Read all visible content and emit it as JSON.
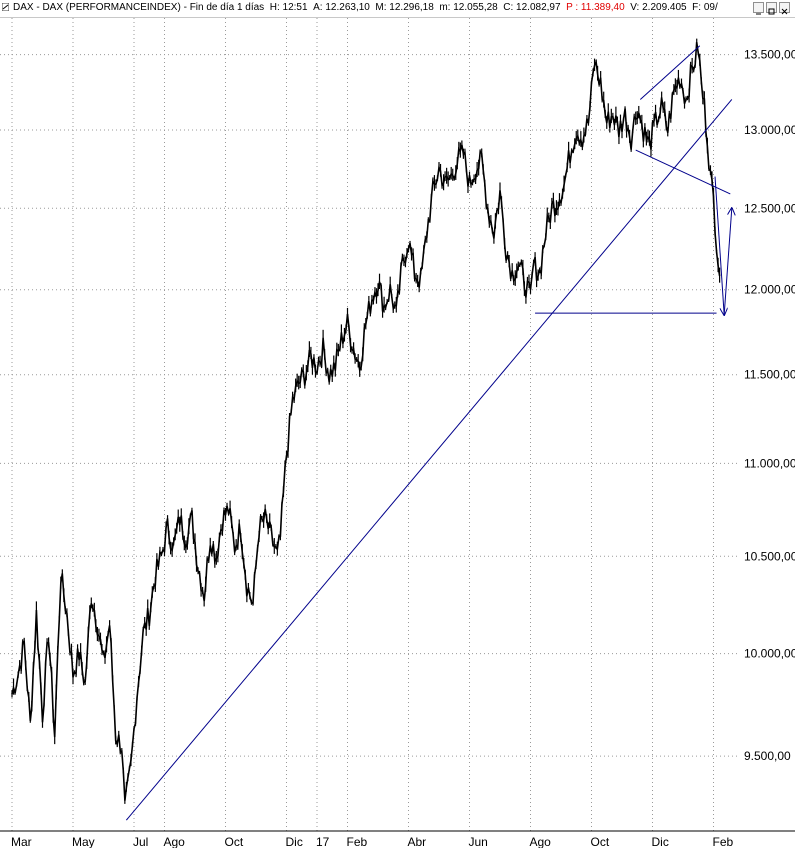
{
  "window": {
    "title_parts": {
      "name": "DAX - DAX (PERFORMANCEINDEX)",
      "period": "Fin de día 1 días",
      "hour": "H: 12:51",
      "open": "A: 12.263,10",
      "high": "M: 12.296,18",
      "low": "m: 12.055,28",
      "close": "C: 12.082,97",
      "p_value": "P : 11.389,40",
      "volume": "V: 2.209.405",
      "date_frag": "F: 09/"
    },
    "buttons": [
      "minimize",
      "maximize",
      "close"
    ]
  },
  "colors": {
    "price": "#000000",
    "trendlines": "#00008b",
    "grid": "#9a9a9a",
    "p_value_text": "#e00000"
  },
  "chart_data": {
    "type": "line",
    "title": "DAX - DAX (PERFORMANCEINDEX)",
    "y_ticks": [
      {
        "value": 9500,
        "label": "9.500,00"
      },
      {
        "value": 10000,
        "label": "10.000,00"
      },
      {
        "value": 10500,
        "label": "10.500,00"
      },
      {
        "value": 11000,
        "label": "11.000,00"
      },
      {
        "value": 11500,
        "label": "11.500,00"
      },
      {
        "value": 12000,
        "label": "12.000,00"
      },
      {
        "value": 12500,
        "label": "12.500,00"
      },
      {
        "value": 13000,
        "label": "13.000,00"
      },
      {
        "value": 13500,
        "label": "13.500,00"
      }
    ],
    "ylim": [
      9150,
      13750
    ],
    "log_scale": true,
    "x_ticks": [
      {
        "t": 0,
        "label": "Mar"
      },
      {
        "t": 2,
        "label": "May"
      },
      {
        "t": 4,
        "label": "Jul"
      },
      {
        "t": 5,
        "label": "Ago"
      },
      {
        "t": 7,
        "label": "Oct"
      },
      {
        "t": 9,
        "label": "Dic"
      },
      {
        "t": 10,
        "label": "17"
      },
      {
        "t": 11,
        "label": "Feb"
      },
      {
        "t": 13,
        "label": "Abr"
      },
      {
        "t": 15,
        "label": "Jun"
      },
      {
        "t": 17,
        "label": "Ago"
      },
      {
        "t": 19,
        "label": "Oct"
      },
      {
        "t": 21,
        "label": "Dic"
      },
      {
        "t": 23,
        "label": "Feb"
      }
    ],
    "grid": true,
    "series": [
      {
        "values": [
          [
            0.0,
            9800
          ],
          [
            0.2,
            9900
          ],
          [
            0.4,
            10050
          ],
          [
            0.6,
            9650
          ],
          [
            0.8,
            10200
          ],
          [
            1.0,
            9700
          ],
          [
            1.2,
            10100
          ],
          [
            1.4,
            9600
          ],
          [
            1.6,
            10400
          ],
          [
            1.8,
            10200
          ],
          [
            2.0,
            9900
          ],
          [
            2.2,
            10000
          ],
          [
            2.4,
            9850
          ],
          [
            2.6,
            10300
          ],
          [
            2.8,
            10150
          ],
          [
            3.0,
            9950
          ],
          [
            3.2,
            10150
          ],
          [
            3.4,
            9600
          ],
          [
            3.6,
            9550
          ],
          [
            3.7,
            9250
          ],
          [
            3.9,
            9450
          ],
          [
            4.1,
            9800
          ],
          [
            4.3,
            10100
          ],
          [
            4.5,
            10200
          ],
          [
            4.7,
            10400
          ],
          [
            4.9,
            10500
          ],
          [
            5.1,
            10650
          ],
          [
            5.3,
            10550
          ],
          [
            5.5,
            10700
          ],
          [
            5.7,
            10600
          ],
          [
            5.9,
            10700
          ],
          [
            6.1,
            10450
          ],
          [
            6.3,
            10300
          ],
          [
            6.5,
            10600
          ],
          [
            6.7,
            10500
          ],
          [
            6.9,
            10700
          ],
          [
            7.1,
            10750
          ],
          [
            7.3,
            10550
          ],
          [
            7.5,
            10650
          ],
          [
            7.7,
            10350
          ],
          [
            7.9,
            10250
          ],
          [
            8.1,
            10650
          ],
          [
            8.3,
            10700
          ],
          [
            8.5,
            10600
          ],
          [
            8.7,
            10500
          ],
          [
            8.8,
            10600
          ],
          [
            9.0,
            11050
          ],
          [
            9.2,
            11350
          ],
          [
            9.4,
            11450
          ],
          [
            9.6,
            11500
          ],
          [
            9.8,
            11600
          ],
          [
            10.0,
            11550
          ],
          [
            10.2,
            11650
          ],
          [
            10.4,
            11500
          ],
          [
            10.6,
            11550
          ],
          [
            10.8,
            11700
          ],
          [
            11.0,
            11800
          ],
          [
            11.2,
            11650
          ],
          [
            11.4,
            11550
          ],
          [
            11.6,
            11800
          ],
          [
            11.8,
            11950
          ],
          [
            12.0,
            12050
          ],
          [
            12.2,
            11900
          ],
          [
            12.4,
            12000
          ],
          [
            12.6,
            11850
          ],
          [
            12.8,
            12150
          ],
          [
            13.0,
            12300
          ],
          [
            13.2,
            12100
          ],
          [
            13.4,
            12050
          ],
          [
            13.6,
            12350
          ],
          [
            13.8,
            12600
          ],
          [
            14.0,
            12750
          ],
          [
            14.2,
            12650
          ],
          [
            14.4,
            12700
          ],
          [
            14.6,
            12800
          ],
          [
            14.8,
            12850
          ],
          [
            15.0,
            12650
          ],
          [
            15.2,
            12750
          ],
          [
            15.4,
            12800
          ],
          [
            15.6,
            12500
          ],
          [
            15.8,
            12350
          ],
          [
            16.0,
            12600
          ],
          [
            16.2,
            12250
          ],
          [
            16.4,
            12100
          ],
          [
            16.6,
            12150
          ],
          [
            16.8,
            12050
          ],
          [
            17.0,
            11950
          ],
          [
            17.1,
            12150
          ],
          [
            17.3,
            12100
          ],
          [
            17.5,
            12350
          ],
          [
            17.7,
            12500
          ],
          [
            17.9,
            12550
          ],
          [
            18.1,
            12650
          ],
          [
            18.3,
            12850
          ],
          [
            18.5,
            13000
          ],
          [
            18.7,
            12950
          ],
          [
            18.9,
            13050
          ],
          [
            19.0,
            13250
          ],
          [
            19.1,
            13450
          ],
          [
            19.3,
            13300
          ],
          [
            19.5,
            13050
          ],
          [
            19.7,
            13100
          ],
          [
            19.9,
            13000
          ],
          [
            20.1,
            13100
          ],
          [
            20.3,
            12950
          ],
          [
            20.5,
            13150
          ],
          [
            20.7,
            13000
          ],
          [
            20.9,
            12900
          ],
          [
            21.1,
            13050
          ],
          [
            21.3,
            13150
          ],
          [
            21.5,
            13000
          ],
          [
            21.7,
            13250
          ],
          [
            21.9,
            13350
          ],
          [
            22.1,
            13200
          ],
          [
            22.3,
            13400
          ],
          [
            22.5,
            13550
          ],
          [
            22.6,
            13300
          ],
          [
            22.7,
            13150
          ],
          [
            22.8,
            12950
          ],
          [
            22.9,
            12700
          ],
          [
            23.0,
            12550
          ],
          [
            23.1,
            12300
          ],
          [
            23.2,
            12083
          ]
        ]
      }
    ],
    "annotations": [
      {
        "type": "trendline",
        "from": [
          3.75,
          9200
        ],
        "to": [
          23.6,
          13200
        ]
      },
      {
        "type": "trendline",
        "from": [
          20.6,
          13200
        ],
        "to": [
          22.55,
          13560
        ]
      },
      {
        "type": "trendline",
        "from": [
          20.45,
          12870
        ],
        "to": [
          23.55,
          12590
        ]
      },
      {
        "type": "trendline",
        "from": [
          17.15,
          11860
        ],
        "to": [
          23.1,
          11860
        ]
      },
      {
        "type": "arrow",
        "from": [
          23.05,
          12700
        ],
        "to": [
          23.35,
          11850
        ]
      },
      {
        "type": "arrow",
        "from": [
          23.35,
          11850
        ],
        "to": [
          23.6,
          12500
        ]
      }
    ]
  }
}
